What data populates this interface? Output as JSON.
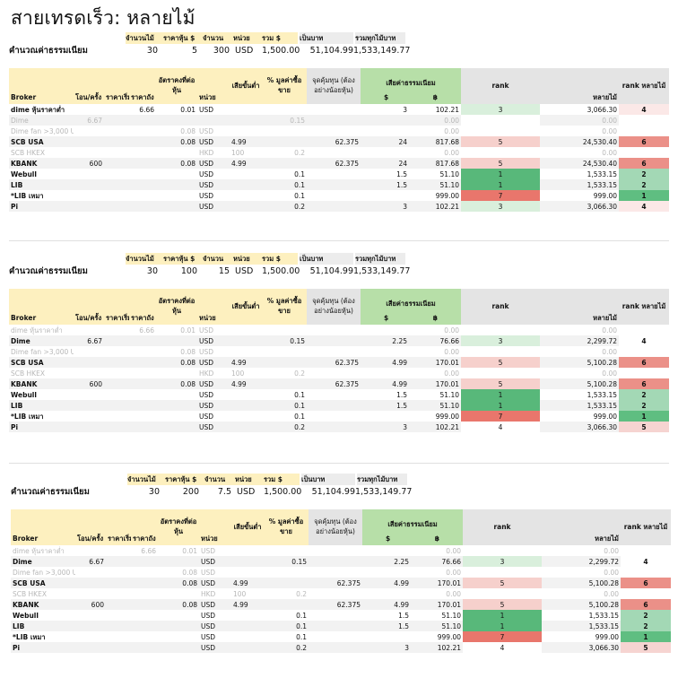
{
  "title": "สายเทรดเร็ว: หลายไม้",
  "summary_headers": [
    "จำนวนไม้",
    "ราคาหุ้น $",
    "จำนวน",
    "หน่วย",
    "รวม $",
    "เป็นบาท",
    "รวมทุกไม้บาท"
  ],
  "summary_label": "คำนวณค่าธรรมเนียม",
  "table_headers": {
    "broker": "Broker",
    "per_order": "โอน/ครั้ง",
    "min_price": "ราคาเริ่ม",
    "price_per": "ราคาถัง",
    "rate_per_share": "อัตราคงที่ต่อหุ้น",
    "unit": "หน่วย",
    "min_loss": "เสียขั้นต่ำ",
    "pct_value": "% มูลค่าซื้อขาย",
    "breakeven": "จุดคุ้มทุน (ต้องอย่างน้อยหุ้น)",
    "fee_total": "เสียค่าธรรมเนียม",
    "fee_usd": "$",
    "fee_thb": "฿",
    "rank": "rank",
    "multi_thb": "หลายไม้",
    "rank_multi": "rank หลายไม้"
  },
  "blocks": [
    {
      "summary": {
        "lots": "30",
        "price": "5",
        "qty": "300",
        "unit": "USD",
        "total": "1,500.00",
        "thb": "51,104.99",
        "all_thb": "1,533,149.77"
      },
      "rows": [
        {
          "broker": "dime หุ้นราคาต่ำ",
          "per_order": "",
          "min_price": "",
          "price_per": "6.66",
          "rate": "0.01",
          "unit": "USD",
          "min_loss": "",
          "pct": "",
          "breakeven": "",
          "fee_usd": "3",
          "fee_thb": "102.21",
          "rank": "3",
          "multi": "3,066.30",
          "rank_multi": "4",
          "muted": false,
          "rk": "rk3",
          "rb": "rb4"
        },
        {
          "broker": "Dime",
          "per_order": "6.67",
          "min_price": "",
          "price_per": "",
          "rate": "",
          "unit": "",
          "min_loss": "",
          "pct": "0.15",
          "breakeven": "",
          "fee_usd": "",
          "fee_thb": "0.00",
          "rank": "",
          "multi": "0.00",
          "rank_multi": "",
          "muted": true,
          "rk": "rkw",
          "rb": "rkw"
        },
        {
          "broker": "Dime fan >3,000 USD",
          "per_order": "",
          "min_price": "",
          "price_per": "",
          "rate": "0.08",
          "unit": "USD",
          "min_loss": "",
          "pct": "",
          "breakeven": "",
          "fee_usd": "",
          "fee_thb": "0.00",
          "rank": "",
          "multi": "0.00",
          "rank_multi": "",
          "muted": true,
          "rk": "rkw",
          "rb": "rkw"
        },
        {
          "broker": "SCB USA",
          "per_order": "",
          "min_price": "",
          "price_per": "",
          "rate": "0.08",
          "unit": "USD",
          "min_loss": "4.99",
          "pct": "",
          "breakeven": "62.375",
          "fee_usd": "24",
          "fee_thb": "817.68",
          "rank": "5",
          "multi": "24,530.40",
          "rank_multi": "6",
          "muted": false,
          "rk": "rk5",
          "rb": "rb6"
        },
        {
          "broker": "SCB HKEX",
          "per_order": "",
          "min_price": "",
          "price_per": "",
          "rate": "",
          "unit": "HKD",
          "min_loss": "100",
          "pct": "0.2",
          "breakeven": "",
          "fee_usd": "",
          "fee_thb": "0.00",
          "rank": "",
          "multi": "0.00",
          "rank_multi": "",
          "muted": true,
          "rk": "rkw",
          "rb": "rkw"
        },
        {
          "broker": "KBANK",
          "per_order": "600",
          "min_price": "",
          "price_per": "",
          "rate": "0.08",
          "unit": "USD",
          "min_loss": "4.99",
          "pct": "",
          "breakeven": "62.375",
          "fee_usd": "24",
          "fee_thb": "817.68",
          "rank": "5",
          "multi": "24,530.40",
          "rank_multi": "6",
          "muted": false,
          "rk": "rk5",
          "rb": "rb6"
        },
        {
          "broker": "Webull",
          "per_order": "",
          "min_price": "",
          "price_per": "",
          "rate": "",
          "unit": "USD",
          "min_loss": "",
          "pct": "0.1",
          "breakeven": "",
          "fee_usd": "1.5",
          "fee_thb": "51.10",
          "rank": "1",
          "multi": "1,533.15",
          "rank_multi": "2",
          "muted": false,
          "rk": "rk1",
          "rb": "rb2"
        },
        {
          "broker": "LIB",
          "per_order": "",
          "min_price": "",
          "price_per": "",
          "rate": "",
          "unit": "USD",
          "min_loss": "",
          "pct": "0.1",
          "breakeven": "",
          "fee_usd": "1.5",
          "fee_thb": "51.10",
          "rank": "1",
          "multi": "1,533.15",
          "rank_multi": "2",
          "muted": false,
          "rk": "rk1",
          "rb": "rb2"
        },
        {
          "broker": "*LIB เหมา",
          "per_order": "",
          "min_price": "",
          "price_per": "",
          "rate": "",
          "unit": "USD",
          "min_loss": "",
          "pct": "0.1",
          "breakeven": "",
          "fee_usd": "",
          "fee_thb": "999.00",
          "rank": "7",
          "multi": "999.00",
          "rank_multi": "1",
          "muted": false,
          "rk": "rk7",
          "rb": "rb1"
        },
        {
          "broker": "Pi",
          "per_order": "",
          "min_price": "",
          "price_per": "",
          "rate": "",
          "unit": "USD",
          "min_loss": "",
          "pct": "0.2",
          "breakeven": "",
          "fee_usd": "3",
          "fee_thb": "102.21",
          "rank": "3",
          "multi": "3,066.30",
          "rank_multi": "4",
          "muted": false,
          "rk": "rk3",
          "rb": "rb4"
        }
      ]
    },
    {
      "summary": {
        "lots": "30",
        "price": "100",
        "qty": "15",
        "unit": "USD",
        "total": "1,500.00",
        "thb": "51,104.99",
        "all_thb": "1,533,149.77"
      },
      "rows": [
        {
          "broker": "dime หุ้นราคาต่ำ",
          "per_order": "",
          "min_price": "",
          "price_per": "6.66",
          "rate": "0.01",
          "unit": "USD",
          "min_loss": "",
          "pct": "",
          "breakeven": "",
          "fee_usd": "",
          "fee_thb": "0.00",
          "rank": "",
          "multi": "0.00",
          "rank_multi": "",
          "muted": true,
          "rk": "rkw",
          "rb": "rkw"
        },
        {
          "broker": "Dime",
          "per_order": "6.67",
          "min_price": "",
          "price_per": "",
          "rate": "",
          "unit": "USD",
          "min_loss": "",
          "pct": "0.15",
          "breakeven": "",
          "fee_usd": "2.25",
          "fee_thb": "76.66",
          "rank": "3",
          "multi": "2,299.72",
          "rank_multi": "4",
          "muted": false,
          "rk": "rk3",
          "rb": "rkw"
        },
        {
          "broker": "Dime fan >3,000 USD",
          "per_order": "",
          "min_price": "",
          "price_per": "",
          "rate": "0.08",
          "unit": "USD",
          "min_loss": "",
          "pct": "",
          "breakeven": "",
          "fee_usd": "",
          "fee_thb": "0.00",
          "rank": "",
          "multi": "0.00",
          "rank_multi": "",
          "muted": true,
          "rk": "rkw",
          "rb": "rkw"
        },
        {
          "broker": "SCB USA",
          "per_order": "",
          "min_price": "",
          "price_per": "",
          "rate": "0.08",
          "unit": "USD",
          "min_loss": "4.99",
          "pct": "",
          "breakeven": "62.375",
          "fee_usd": "4.99",
          "fee_thb": "170.01",
          "rank": "5",
          "multi": "5,100.28",
          "rank_multi": "6",
          "muted": false,
          "rk": "rk5",
          "rb": "rb6"
        },
        {
          "broker": "SCB HKEX",
          "per_order": "",
          "min_price": "",
          "price_per": "",
          "rate": "",
          "unit": "HKD",
          "min_loss": "100",
          "pct": "0.2",
          "breakeven": "",
          "fee_usd": "",
          "fee_thb": "0.00",
          "rank": "",
          "multi": "0.00",
          "rank_multi": "",
          "muted": true,
          "rk": "rkw",
          "rb": "rkw"
        },
        {
          "broker": "KBANK",
          "per_order": "600",
          "min_price": "",
          "price_per": "",
          "rate": "0.08",
          "unit": "USD",
          "min_loss": "4.99",
          "pct": "",
          "breakeven": "62.375",
          "fee_usd": "4.99",
          "fee_thb": "170.01",
          "rank": "5",
          "multi": "5,100.28",
          "rank_multi": "6",
          "muted": false,
          "rk": "rk5",
          "rb": "rb6"
        },
        {
          "broker": "Webull",
          "per_order": "",
          "min_price": "",
          "price_per": "",
          "rate": "",
          "unit": "USD",
          "min_loss": "",
          "pct": "0.1",
          "breakeven": "",
          "fee_usd": "1.5",
          "fee_thb": "51.10",
          "rank": "1",
          "multi": "1,533.15",
          "rank_multi": "2",
          "muted": false,
          "rk": "rk1",
          "rb": "rb2"
        },
        {
          "broker": "LIB",
          "per_order": "",
          "min_price": "",
          "price_per": "",
          "rate": "",
          "unit": "USD",
          "min_loss": "",
          "pct": "0.1",
          "breakeven": "",
          "fee_usd": "1.5",
          "fee_thb": "51.10",
          "rank": "1",
          "multi": "1,533.15",
          "rank_multi": "2",
          "muted": false,
          "rk": "rk1",
          "rb": "rb2"
        },
        {
          "broker": "*LIB เหมา",
          "per_order": "",
          "min_price": "",
          "price_per": "",
          "rate": "",
          "unit": "USD",
          "min_loss": "",
          "pct": "0.1",
          "breakeven": "",
          "fee_usd": "",
          "fee_thb": "999.00",
          "rank": "7",
          "multi": "999.00",
          "rank_multi": "1",
          "muted": false,
          "rk": "rk7",
          "rb": "rb1"
        },
        {
          "broker": "Pi",
          "per_order": "",
          "min_price": "",
          "price_per": "",
          "rate": "",
          "unit": "USD",
          "min_loss": "",
          "pct": "0.2",
          "breakeven": "",
          "fee_usd": "3",
          "fee_thb": "102.21",
          "rank": "4",
          "multi": "3,066.30",
          "rank_multi": "5",
          "muted": false,
          "rk": "rkw",
          "rb": "rb5"
        }
      ]
    },
    {
      "summary": {
        "lots": "30",
        "price": "200",
        "qty": "7.5",
        "unit": "USD",
        "total": "1,500.00",
        "thb": "51,104.99",
        "all_thb": "1,533,149.77"
      },
      "rows": [
        {
          "broker": "dime หุ้นราคาต่ำ",
          "per_order": "",
          "min_price": "",
          "price_per": "6.66",
          "rate": "0.01",
          "unit": "USD",
          "min_loss": "",
          "pct": "",
          "breakeven": "",
          "fee_usd": "",
          "fee_thb": "0.00",
          "rank": "",
          "multi": "0.00",
          "rank_multi": "",
          "muted": true,
          "rk": "rkw",
          "rb": "rkw"
        },
        {
          "broker": "Dime",
          "per_order": "6.67",
          "min_price": "",
          "price_per": "",
          "rate": "",
          "unit": "USD",
          "min_loss": "",
          "pct": "0.15",
          "breakeven": "",
          "fee_usd": "2.25",
          "fee_thb": "76.66",
          "rank": "3",
          "multi": "2,299.72",
          "rank_multi": "4",
          "muted": false,
          "rk": "rk3",
          "rb": "rkw"
        },
        {
          "broker": "Dime fan >3,000 USD",
          "per_order": "",
          "min_price": "",
          "price_per": "",
          "rate": "0.08",
          "unit": "USD",
          "min_loss": "",
          "pct": "",
          "breakeven": "",
          "fee_usd": "",
          "fee_thb": "0.00",
          "rank": "",
          "multi": "0.00",
          "rank_multi": "",
          "muted": true,
          "rk": "rkw",
          "rb": "rkw"
        },
        {
          "broker": "SCB USA",
          "per_order": "",
          "min_price": "",
          "price_per": "",
          "rate": "0.08",
          "unit": "USD",
          "min_loss": "4.99",
          "pct": "",
          "breakeven": "62.375",
          "fee_usd": "4.99",
          "fee_thb": "170.01",
          "rank": "5",
          "multi": "5,100.28",
          "rank_multi": "6",
          "muted": false,
          "rk": "rk5",
          "rb": "rb6"
        },
        {
          "broker": "SCB HKEX",
          "per_order": "",
          "min_price": "",
          "price_per": "",
          "rate": "",
          "unit": "HKD",
          "min_loss": "100",
          "pct": "0.2",
          "breakeven": "",
          "fee_usd": "",
          "fee_thb": "0.00",
          "rank": "",
          "multi": "0.00",
          "rank_multi": "",
          "muted": true,
          "rk": "rkw",
          "rb": "rkw"
        },
        {
          "broker": "KBANK",
          "per_order": "600",
          "min_price": "",
          "price_per": "",
          "rate": "0.08",
          "unit": "USD",
          "min_loss": "4.99",
          "pct": "",
          "breakeven": "62.375",
          "fee_usd": "4.99",
          "fee_thb": "170.01",
          "rank": "5",
          "multi": "5,100.28",
          "rank_multi": "6",
          "muted": false,
          "rk": "rk5",
          "rb": "rb6"
        },
        {
          "broker": "Webull",
          "per_order": "",
          "min_price": "",
          "price_per": "",
          "rate": "",
          "unit": "USD",
          "min_loss": "",
          "pct": "0.1",
          "breakeven": "",
          "fee_usd": "1.5",
          "fee_thb": "51.10",
          "rank": "1",
          "multi": "1,533.15",
          "rank_multi": "2",
          "muted": false,
          "rk": "rk1",
          "rb": "rb2"
        },
        {
          "broker": "LIB",
          "per_order": "",
          "min_price": "",
          "price_per": "",
          "rate": "",
          "unit": "USD",
          "min_loss": "",
          "pct": "0.1",
          "breakeven": "",
          "fee_usd": "1.5",
          "fee_thb": "51.10",
          "rank": "1",
          "multi": "1,533.15",
          "rank_multi": "2",
          "muted": false,
          "rk": "rk1",
          "rb": "rb2"
        },
        {
          "broker": "*LIB เหมา",
          "per_order": "",
          "min_price": "",
          "price_per": "",
          "rate": "",
          "unit": "USD",
          "min_loss": "",
          "pct": "0.1",
          "breakeven": "",
          "fee_usd": "",
          "fee_thb": "999.00",
          "rank": "7",
          "multi": "999.00",
          "rank_multi": "1",
          "muted": false,
          "rk": "rk7",
          "rb": "rb1"
        },
        {
          "broker": "Pi",
          "per_order": "",
          "min_price": "",
          "price_per": "",
          "rate": "",
          "unit": "USD",
          "min_loss": "",
          "pct": "0.2",
          "breakeven": "",
          "fee_usd": "3",
          "fee_thb": "102.21",
          "rank": "4",
          "multi": "3,066.30",
          "rank_multi": "5",
          "muted": false,
          "rk": "rkw",
          "rb": "rb5"
        }
      ]
    }
  ]
}
